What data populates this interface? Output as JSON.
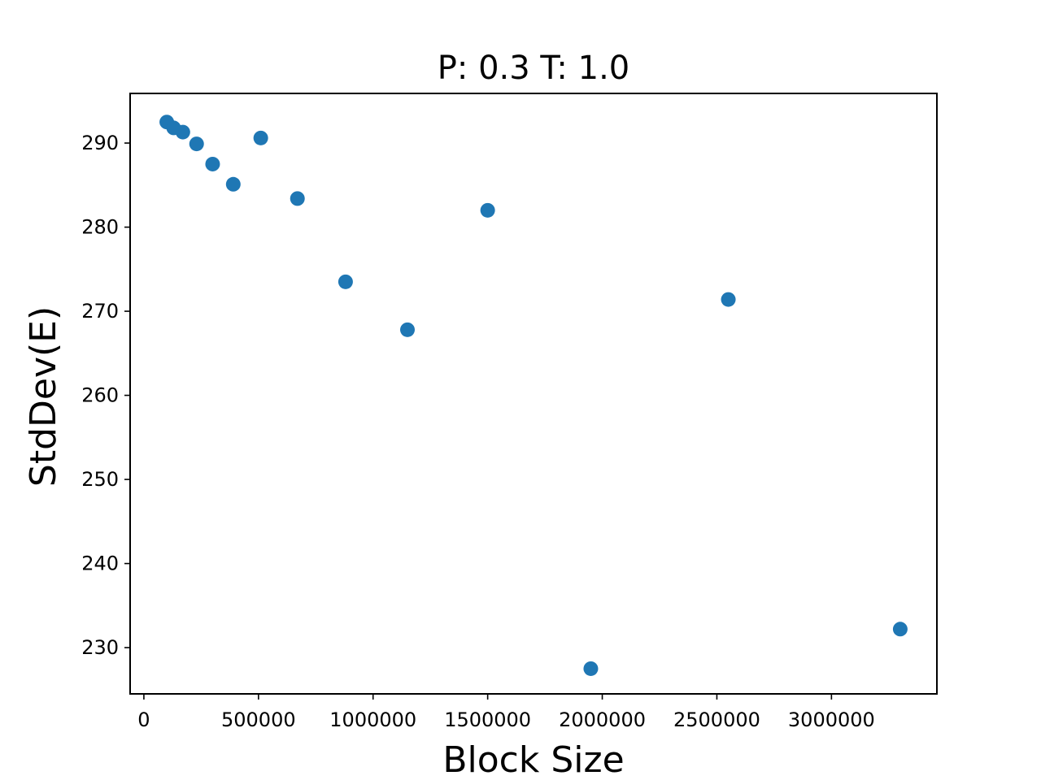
{
  "chart_data": {
    "type": "scatter",
    "title": "P: 0.3 T: 1.0",
    "xlabel": "Block Size",
    "ylabel": "StdDev(E)",
    "xlim": [
      -60000,
      3460000
    ],
    "ylim": [
      224.5,
      295.9
    ],
    "xticks": [
      0,
      500000,
      1000000,
      1500000,
      2000000,
      2500000,
      3000000
    ],
    "xtick_labels": [
      "0",
      "500000",
      "1000000",
      "1500000",
      "2000000",
      "2500000",
      "3000000"
    ],
    "yticks": [
      230,
      240,
      250,
      260,
      270,
      280,
      290
    ],
    "ytick_labels": [
      "230",
      "240",
      "250",
      "260",
      "270",
      "280",
      "290"
    ],
    "marker_color": "#1f77b4",
    "grid": false,
    "series": [
      {
        "name": "data",
        "x": [
          100000,
          130000,
          170000,
          230000,
          300000,
          390000,
          510000,
          670000,
          880000,
          1150000,
          1500000,
          1950000,
          2550000,
          3300000
        ],
        "y": [
          292.5,
          291.8,
          291.3,
          289.9,
          287.5,
          285.1,
          290.6,
          283.4,
          273.5,
          267.8,
          282.0,
          227.5,
          271.4,
          232.2
        ]
      }
    ]
  }
}
